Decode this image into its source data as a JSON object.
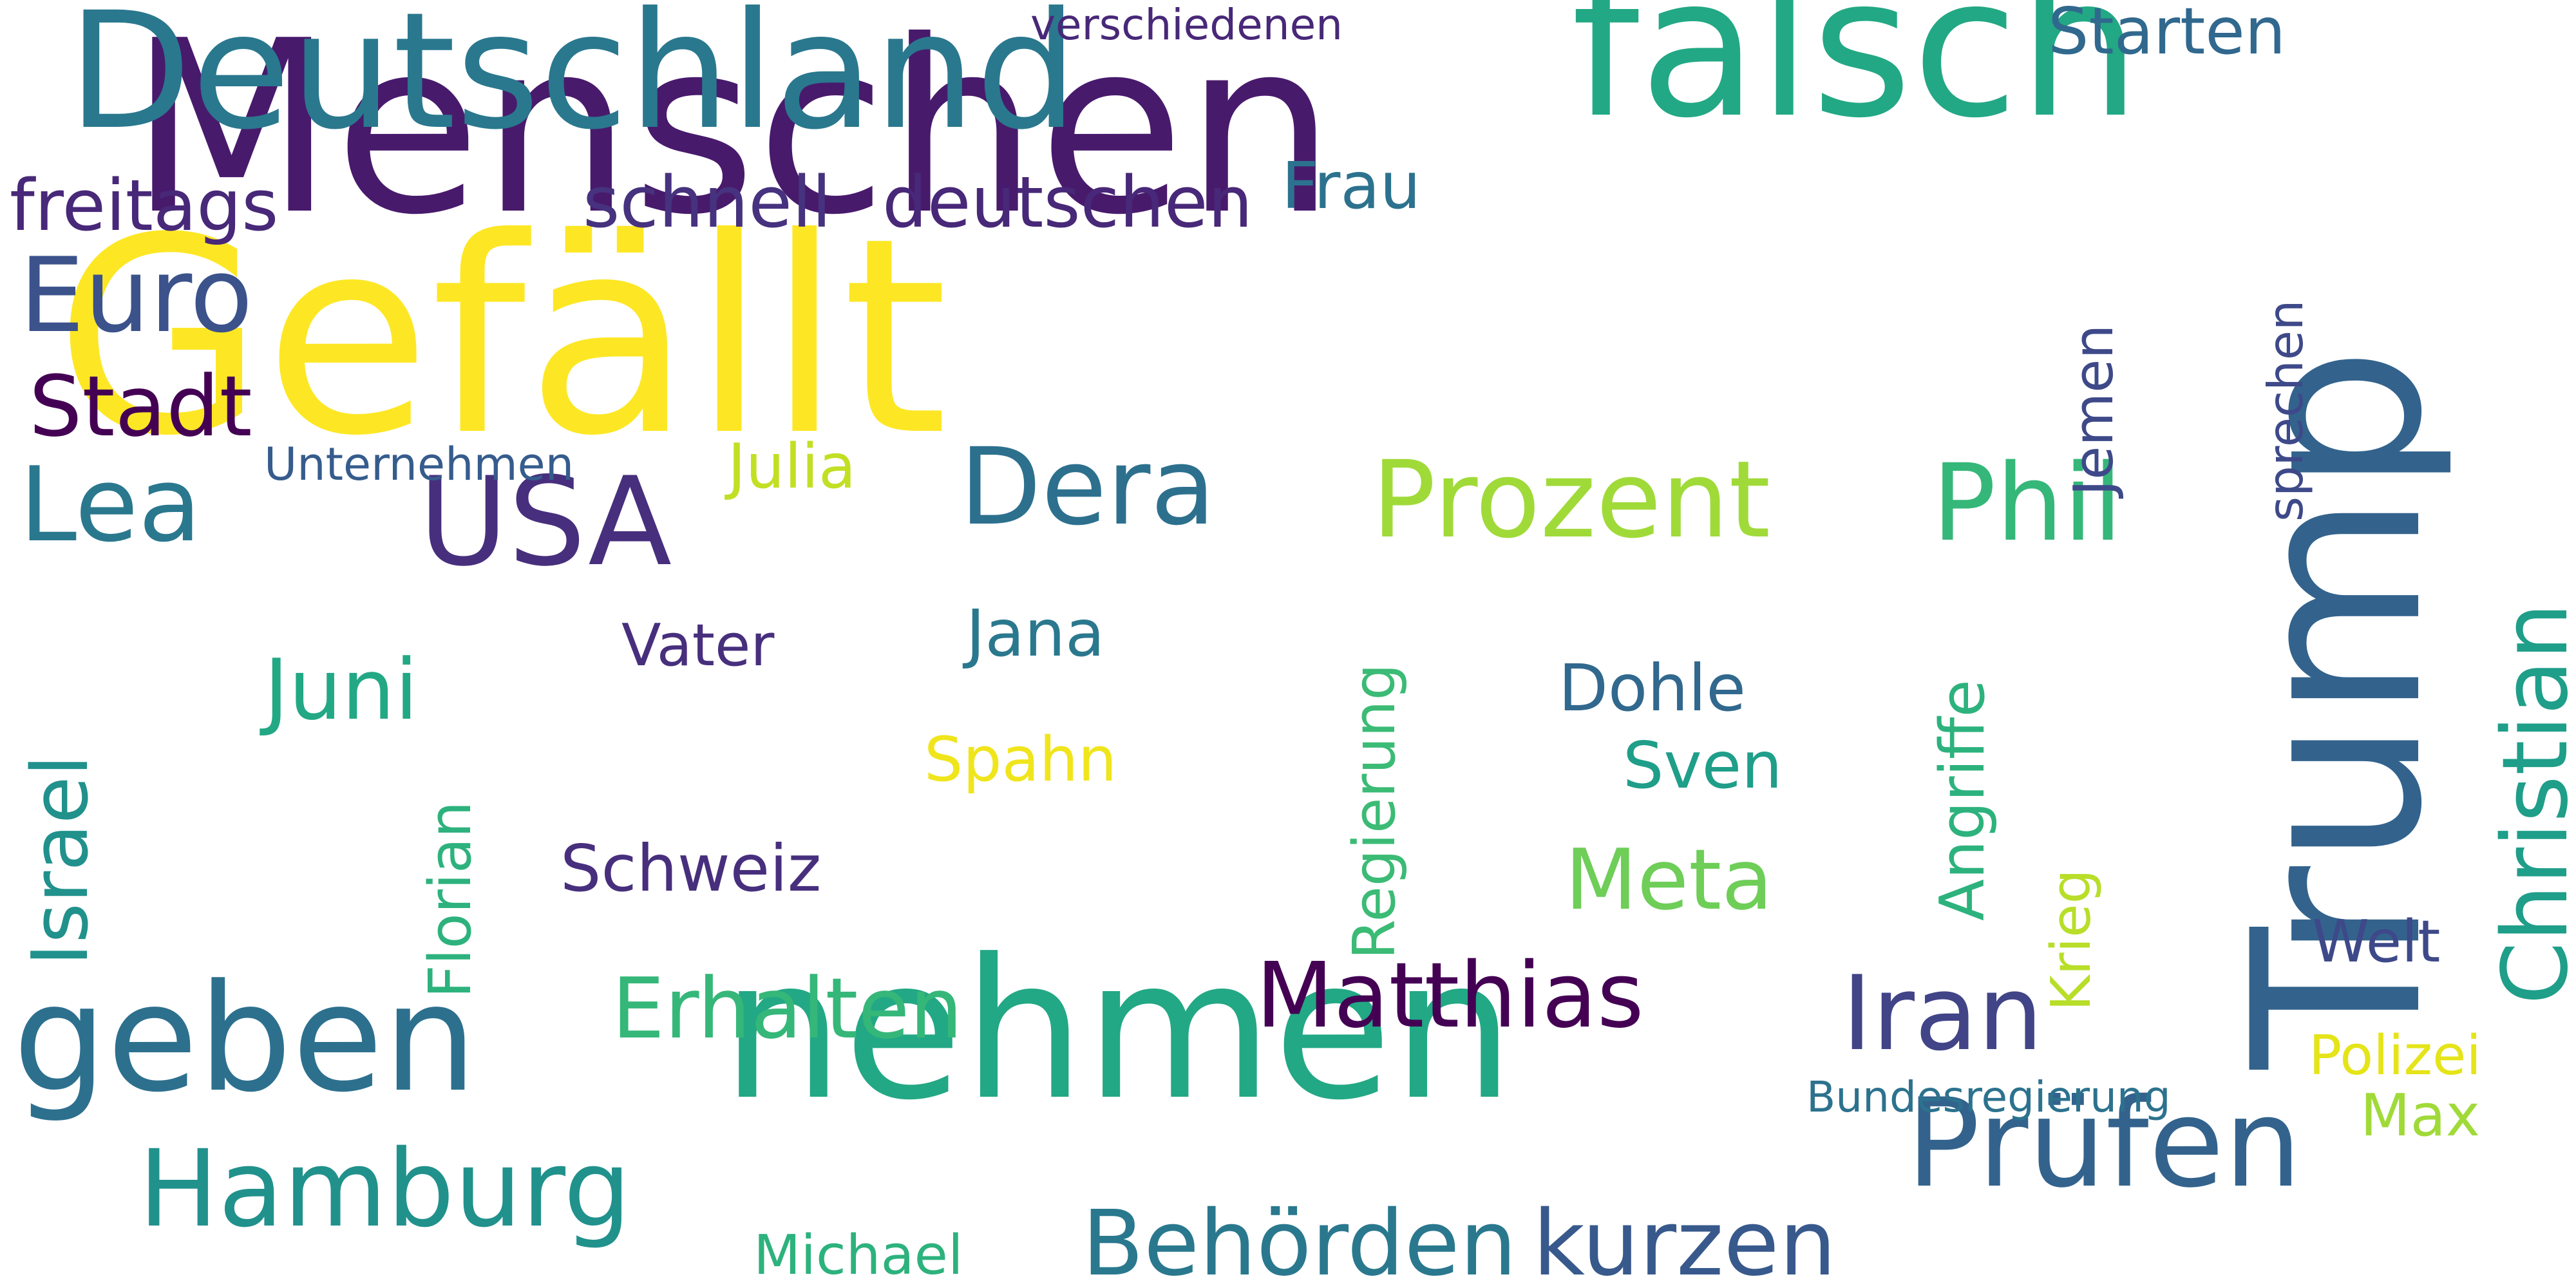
{
  "word_cloud": {
    "words": [
      {
        "text": "Gefällt",
        "color": "#fde725"
      },
      {
        "text": "Menschen",
        "color": "#481a6c"
      },
      {
        "text": "Trump",
        "color": "#33638d"
      },
      {
        "text": "falsch",
        "color": "#22a884"
      },
      {
        "text": "Deutschland",
        "color": "#2a788e"
      },
      {
        "text": "nehmen",
        "color": "#22a884"
      },
      {
        "text": "geben",
        "color": "#2d708e"
      },
      {
        "text": "Prüfen",
        "color": "#33638d"
      },
      {
        "text": "USA",
        "color": "#472f7d"
      },
      {
        "text": "Hamburg",
        "color": "#21918c"
      },
      {
        "text": "Prozent",
        "color": "#a0da39"
      },
      {
        "text": "Phil",
        "color": "#35b779"
      },
      {
        "text": "Dera",
        "color": "#2d708e"
      },
      {
        "text": "Iran",
        "color": "#414487"
      },
      {
        "text": "Euro",
        "color": "#3b528b"
      },
      {
        "text": "Matthias",
        "color": "#440154"
      },
      {
        "text": "Behörden",
        "color": "#2a788e"
      },
      {
        "text": "kurzen",
        "color": "#38598c"
      },
      {
        "text": "Erhalten",
        "color": "#35b779"
      },
      {
        "text": "Lea",
        "color": "#2a788e"
      },
      {
        "text": "Stadt",
        "color": "#440154"
      },
      {
        "text": "Christian",
        "color": "#1f9e89"
      },
      {
        "text": "Meta",
        "color": "#6ece58"
      },
      {
        "text": "Juni",
        "color": "#22a884"
      },
      {
        "text": "freitags",
        "color": "#482878"
      },
      {
        "text": "deutschen",
        "color": "#482878"
      },
      {
        "text": "schnell",
        "color": "#46327e"
      },
      {
        "text": "Israel",
        "color": "#21918c"
      },
      {
        "text": "Schweiz",
        "color": "#472f7d"
      },
      {
        "text": "Starten",
        "color": "#31688e"
      },
      {
        "text": "Frau",
        "color": "#2c728e"
      },
      {
        "text": "Jana",
        "color": "#2a788e"
      },
      {
        "text": "Dohle",
        "color": "#31688e"
      },
      {
        "text": "Sven",
        "color": "#1f9e89"
      },
      {
        "text": "Vater",
        "color": "#472f7d"
      },
      {
        "text": "Spahn",
        "color": "#f0e51c"
      },
      {
        "text": "Julia",
        "color": "#c2df23"
      },
      {
        "text": "Welt",
        "color": "#3e4989"
      },
      {
        "text": "Polizei",
        "color": "#e5e419"
      },
      {
        "text": "Max",
        "color": "#a0da39"
      },
      {
        "text": "Michael",
        "color": "#2db27d"
      },
      {
        "text": "Unternehmen",
        "color": "#365c8d"
      },
      {
        "text": "verschiedenen",
        "color": "#482878"
      },
      {
        "text": "Bundesregierung",
        "color": "#2c728e"
      },
      {
        "text": "Regierung",
        "color": "#3bbb75"
      },
      {
        "text": "Florian",
        "color": "#2db27d"
      },
      {
        "text": "Angriffe",
        "color": "#2db27d"
      },
      {
        "text": "Krieg",
        "color": "#b8de29"
      },
      {
        "text": "Jemen",
        "color": "#3e4989"
      },
      {
        "text": "sprechen",
        "color": "#3e4989"
      }
    ]
  }
}
